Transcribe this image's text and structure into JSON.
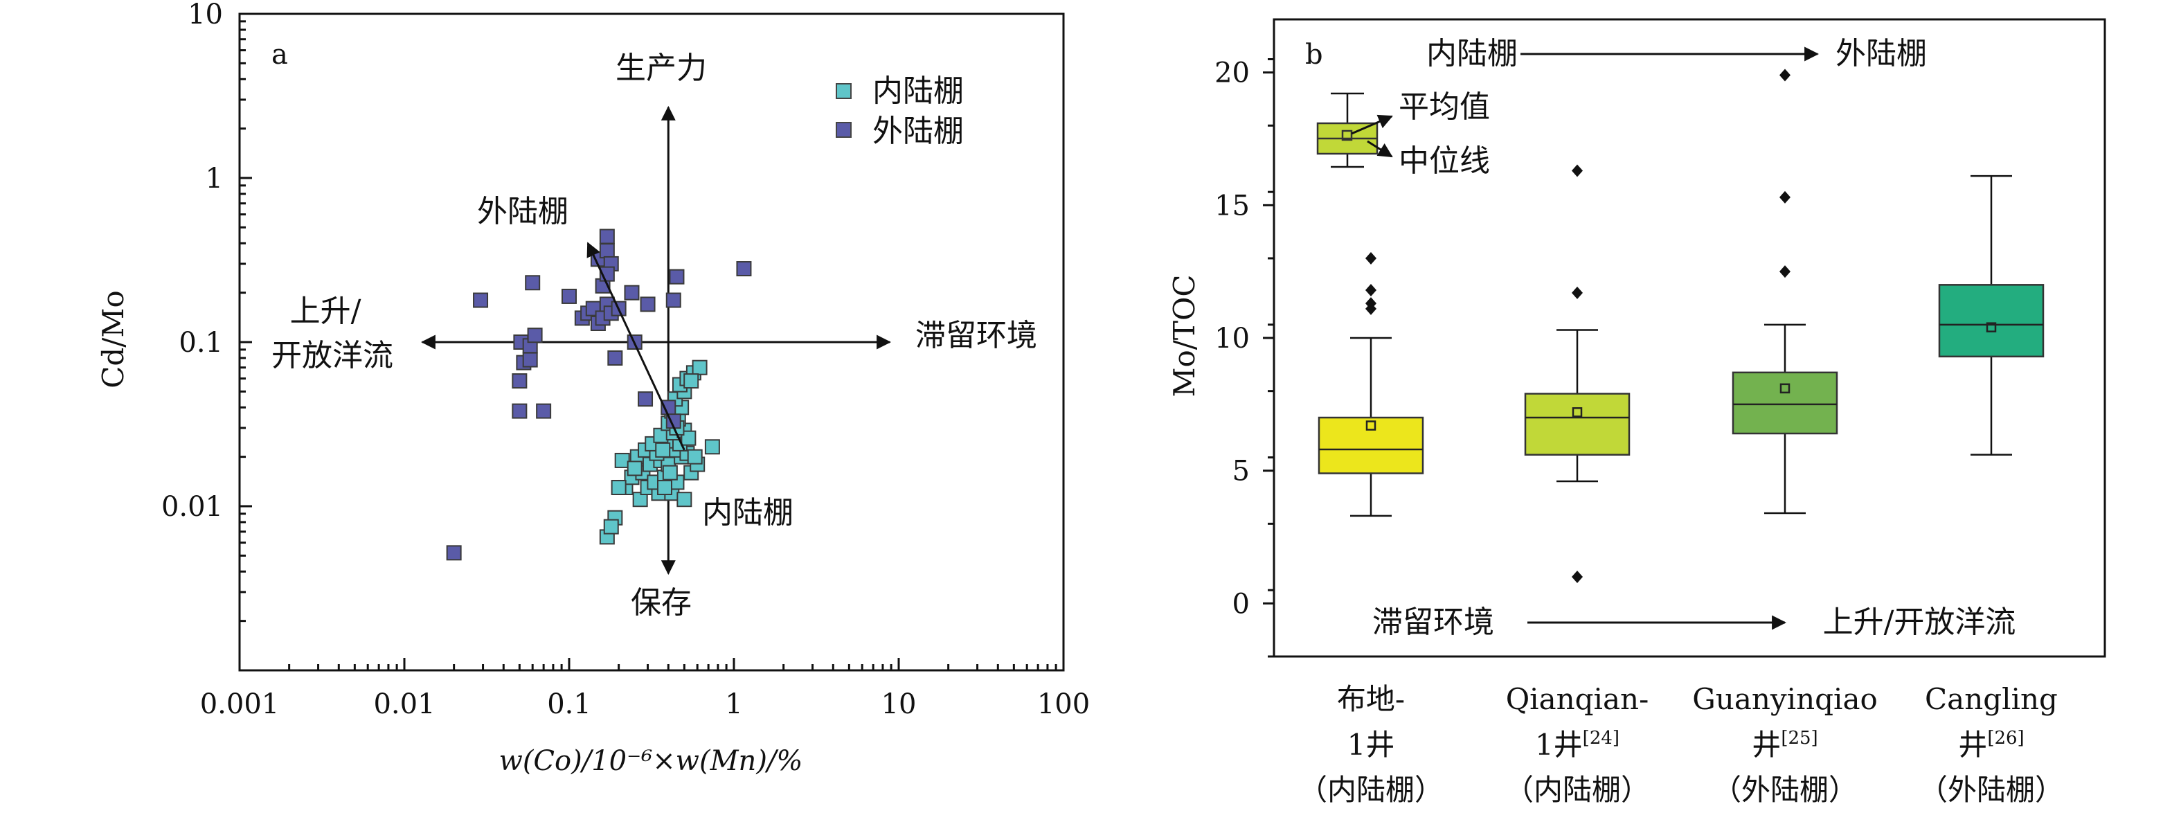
{
  "chart_data": [
    {
      "type": "scatter",
      "panel_label": "a",
      "xlabel": "w(Co)/10⁻⁶×w(Mn)/%",
      "ylabel": "Cd/Mo",
      "xscale": "log",
      "yscale": "log",
      "xlim": [
        0.001,
        100
      ],
      "ylim": [
        0.001,
        10
      ],
      "x_ticks": [
        "0.001",
        "0.01",
        "0.1",
        "1",
        "10",
        "100"
      ],
      "y_ticks": [
        "0.01",
        "0.1",
        "1",
        "10"
      ],
      "legend": {
        "placement": "top-right",
        "entries": [
          {
            "name": "内陆棚",
            "color": "#5fc5c9"
          },
          {
            "name": "外陆棚",
            "color": "#5a5ba8"
          }
        ]
      },
      "annotations": {
        "up": "生产力",
        "down": "保存",
        "left_1": "上升/",
        "left_2": "开放洋流",
        "right": "滞留环境",
        "outer": "外陆棚",
        "inner": "内陆棚"
      },
      "series": [
        {
          "name": "内陆棚",
          "color": "#5fc5c9",
          "points": [
            [
              0.17,
              0.0065
            ],
            [
              0.19,
              0.0085
            ],
            [
              0.18,
              0.0075
            ],
            [
              0.27,
              0.011
            ],
            [
              0.22,
              0.013
            ],
            [
              0.3,
              0.013
            ],
            [
              0.35,
              0.012
            ],
            [
              0.42,
              0.012
            ],
            [
              0.5,
              0.011
            ],
            [
              0.24,
              0.015
            ],
            [
              0.28,
              0.016
            ],
            [
              0.33,
              0.014
            ],
            [
              0.38,
              0.015
            ],
            [
              0.45,
              0.014
            ],
            [
              0.55,
              0.016
            ],
            [
              0.21,
              0.019
            ],
            [
              0.26,
              0.02
            ],
            [
              0.31,
              0.018
            ],
            [
              0.36,
              0.019
            ],
            [
              0.4,
              0.018
            ],
            [
              0.48,
              0.02
            ],
            [
              0.6,
              0.018
            ],
            [
              0.29,
              0.022
            ],
            [
              0.34,
              0.021
            ],
            [
              0.44,
              0.022
            ],
            [
              0.52,
              0.021
            ],
            [
              0.32,
              0.024
            ],
            [
              0.39,
              0.025
            ],
            [
              0.47,
              0.024
            ],
            [
              0.74,
              0.023
            ],
            [
              0.36,
              0.027
            ],
            [
              0.43,
              0.028
            ],
            [
              0.5,
              0.029
            ],
            [
              0.4,
              0.032
            ],
            [
              0.46,
              0.034
            ],
            [
              0.42,
              0.038
            ],
            [
              0.48,
              0.04
            ],
            [
              0.44,
              0.045
            ],
            [
              0.5,
              0.05
            ],
            [
              0.47,
              0.055
            ],
            [
              0.52,
              0.06
            ],
            [
              0.57,
              0.065
            ],
            [
              0.62,
              0.07
            ],
            [
              0.55,
              0.058
            ],
            [
              0.2,
              0.013
            ],
            [
              0.25,
              0.017
            ],
            [
              0.37,
              0.022
            ],
            [
              0.41,
              0.016
            ],
            [
              0.53,
              0.026
            ],
            [
              0.58,
              0.02
            ],
            [
              0.45,
              0.03
            ],
            [
              0.38,
              0.013
            ]
          ]
        },
        {
          "name": "外陆棚",
          "color": "#5a5ba8",
          "points": [
            [
              0.02,
              0.0052
            ],
            [
              0.05,
              0.038
            ],
            [
              0.07,
              0.038
            ],
            [
              0.05,
              0.058
            ],
            [
              0.053,
              0.075
            ],
            [
              0.058,
              0.078
            ],
            [
              0.051,
              0.1
            ],
            [
              0.058,
              0.095
            ],
            [
              0.062,
              0.11
            ],
            [
              0.029,
              0.18
            ],
            [
              0.06,
              0.23
            ],
            [
              0.1,
              0.19
            ],
            [
              0.12,
              0.14
            ],
            [
              0.13,
              0.15
            ],
            [
              0.15,
              0.13
            ],
            [
              0.14,
              0.16
            ],
            [
              0.16,
              0.14
            ],
            [
              0.17,
              0.17
            ],
            [
              0.18,
              0.15
            ],
            [
              0.2,
              0.16
            ],
            [
              0.15,
              0.32
            ],
            [
              0.17,
              0.36
            ],
            [
              0.17,
              0.44
            ],
            [
              0.18,
              0.3
            ],
            [
              0.16,
              0.22
            ],
            [
              0.17,
              0.26
            ],
            [
              0.24,
              0.2
            ],
            [
              0.3,
              0.17
            ],
            [
              0.25,
              0.1
            ],
            [
              0.43,
              0.18
            ],
            [
              0.45,
              0.25
            ],
            [
              1.15,
              0.28
            ],
            [
              0.19,
              0.08
            ],
            [
              0.29,
              0.045
            ],
            [
              0.4,
              0.04
            ],
            [
              0.43,
              0.033
            ]
          ]
        }
      ]
    },
    {
      "type": "box",
      "panel_label": "b",
      "ylabel": "Mo/TOC",
      "ylim": [
        -2,
        22
      ],
      "y_ticks": [
        "0",
        "5",
        "10",
        "15",
        "20"
      ],
      "annotations": {
        "top_left": "内陆棚",
        "top_right": "外陆棚",
        "bottom_left": "滞留环境",
        "bottom_right": "上升/开放洋流",
        "legend_mean": "平均值",
        "legend_median": "中位线"
      },
      "categories": [
        {
          "line1": "布地-",
          "line2": "1井",
          "ref": "",
          "line3": "（内陆棚）"
        },
        {
          "line1": "Qianqian-",
          "line2": "1井",
          "ref": "[24]",
          "line3": "（内陆棚）"
        },
        {
          "line1": "Guanyinqiao",
          "line2": "井",
          "ref": "[25]",
          "line3": "（外陆棚）"
        },
        {
          "line1": "Cangling",
          "line2": "井",
          "ref": "[26]",
          "line3": "（外陆棚）"
        }
      ],
      "boxes": [
        {
          "min": 3.3,
          "q1": 4.9,
          "median": 5.8,
          "mean": 6.7,
          "q3": 7.0,
          "max": 10.0,
          "outliers": [
            11.1,
            11.3,
            11.8,
            13.0
          ],
          "color": "#ece61c"
        },
        {
          "min": 4.6,
          "q1": 5.6,
          "median": 7.0,
          "mean": 7.2,
          "q3": 7.9,
          "max": 10.3,
          "outliers": [
            1.0,
            11.7,
            16.3
          ],
          "color": "#c1d838"
        },
        {
          "min": 3.4,
          "q1": 6.4,
          "median": 7.5,
          "mean": 8.1,
          "q3": 8.7,
          "max": 10.5,
          "outliers": [
            12.5,
            15.3,
            19.9
          ],
          "color": "#73b24f"
        },
        {
          "min": 5.6,
          "q1": 9.3,
          "median": 10.5,
          "mean": 10.4,
          "q3": 12.0,
          "max": 16.1,
          "outliers": [],
          "color": "#23ad7f"
        }
      ],
      "legend_box": {
        "color": "#c1d838"
      }
    }
  ]
}
